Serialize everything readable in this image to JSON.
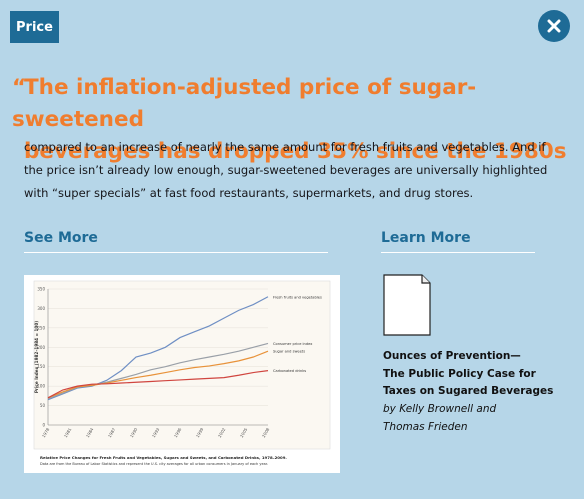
{
  "tag": {
    "label": "Price"
  },
  "headline": {
    "open_quote": "“",
    "line1": "The inflation-adjusted price of sugar-sweetened",
    "line2": "beverages has dropped 35% since the 1980s"
  },
  "body": {
    "text": "compared to an increase of nearly the same amount for fresh fruits and vegetables. And if the price isn’t already low enough, sugar-sweetened beverages are universally highlighted with “super specials” at fast food restaurants, supermarkets, and drug stores."
  },
  "see_more": {
    "label": "See More"
  },
  "learn_more": {
    "label": "Learn More"
  },
  "publication": {
    "title_line1": "Ounces of Prevention—",
    "title_line2": "The Public Policy Case for",
    "title_line3": "Taxes on Sugared Beverages",
    "author_line1": "by Kelly Brownell and",
    "author_line2": "Thomas Frieden"
  },
  "colors": {
    "background": "#b6d6e8",
    "accent_orange": "#f07d2e",
    "accent_blue": "#1e6b96"
  },
  "icons": {
    "close": "close-icon",
    "document": "document-icon"
  },
  "chart_data": {
    "type": "line",
    "ylabel": "Price Index (1982–1984 = 100)",
    "ylim": [
      0,
      350
    ],
    "yticks": [
      "0",
      "50",
      "100",
      "150",
      "200",
      "250",
      "300",
      "350"
    ],
    "x": [
      1978,
      1980,
      1982,
      1984,
      1986,
      1988,
      1990,
      1992,
      1994,
      1996,
      1998,
      2000,
      2002,
      2004,
      2006,
      2008
    ],
    "xticks": [
      "1978",
      "1981",
      "1984",
      "1987",
      "1990",
      "1993",
      "1996",
      "1999",
      "2002",
      "2005",
      "2008"
    ],
    "series": [
      {
        "name": "Fresh fruits and vegetables",
        "color": "#6f8fc4",
        "values": [
          65,
          80,
          95,
          100,
          115,
          140,
          175,
          185,
          200,
          225,
          240,
          255,
          275,
          295,
          310,
          330
        ]
      },
      {
        "name": "Consumer price index",
        "color": "#9aa0a8",
        "values": [
          68,
          82,
          97,
          103,
          110,
          120,
          130,
          142,
          150,
          160,
          168,
          175,
          182,
          190,
          200,
          210
        ]
      },
      {
        "name": "Sugar and sweets",
        "color": "#e8923a",
        "values": [
          70,
          85,
          98,
          102,
          108,
          115,
          122,
          128,
          135,
          142,
          148,
          152,
          158,
          165,
          175,
          190
        ]
      },
      {
        "name": "Carbonated drinks",
        "color": "#d0453f",
        "values": [
          70,
          90,
          100,
          105,
          106,
          108,
          110,
          112,
          114,
          116,
          118,
          120,
          122,
          128,
          135,
          140
        ]
      }
    ],
    "caption_title": "Relative Price Changes for Fresh Fruits and Vegetables, Sugars and Sweets, and Carbonated Drinks, 1978–2009.",
    "caption_note": "Data are from the Bureau of Labor Statistics and represent the U.S. city averages for all urban consumers in January of each year."
  }
}
